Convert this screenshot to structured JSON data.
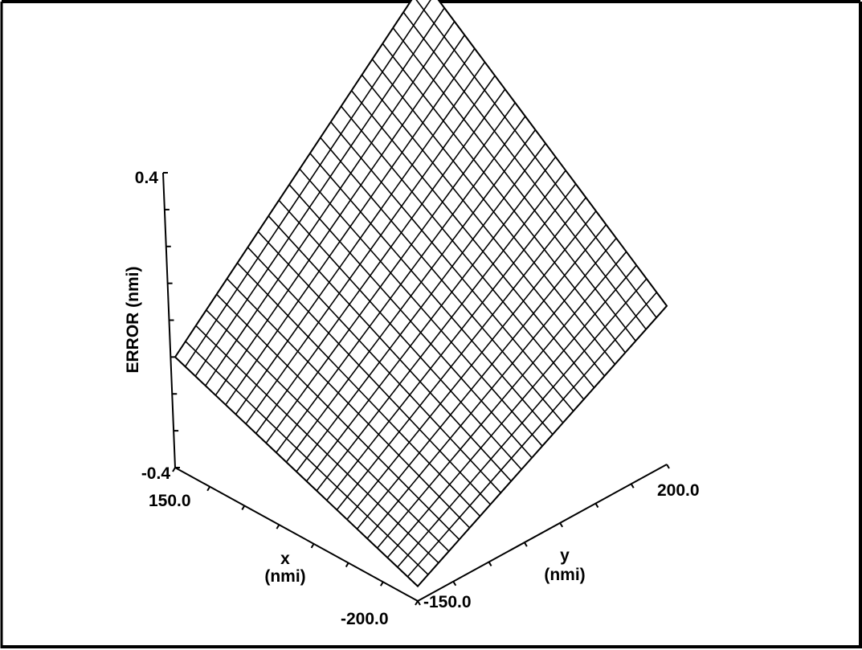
{
  "chart_data": {
    "type": "surface3d",
    "zlabel": "ERROR (nmi)",
    "xlabel": "x",
    "xunit": "(nmi)",
    "ylabel": "y",
    "yunit": "(nmi)",
    "zticks": [
      "0.4",
      "-0.4"
    ],
    "xticks": [
      "150.0",
      "-200.0"
    ],
    "yticks": [
      "-150.0",
      "200.0"
    ],
    "xlim": [
      -200.0,
      150.0
    ],
    "ylim": [
      -150.0,
      200.0
    ],
    "zlim": [
      -0.4,
      0.4
    ],
    "grid_size": [
      24,
      24
    ],
    "corners": [
      {
        "x": 150.0,
        "y": -150.0,
        "z": -0.1
      },
      {
        "x": -200.0,
        "y": -150.0,
        "z": -0.36
      },
      {
        "x": -200.0,
        "y": 200.0,
        "z": 0.03
      },
      {
        "x": 150.0,
        "y": 200.0,
        "z": 0.55
      }
    ]
  }
}
